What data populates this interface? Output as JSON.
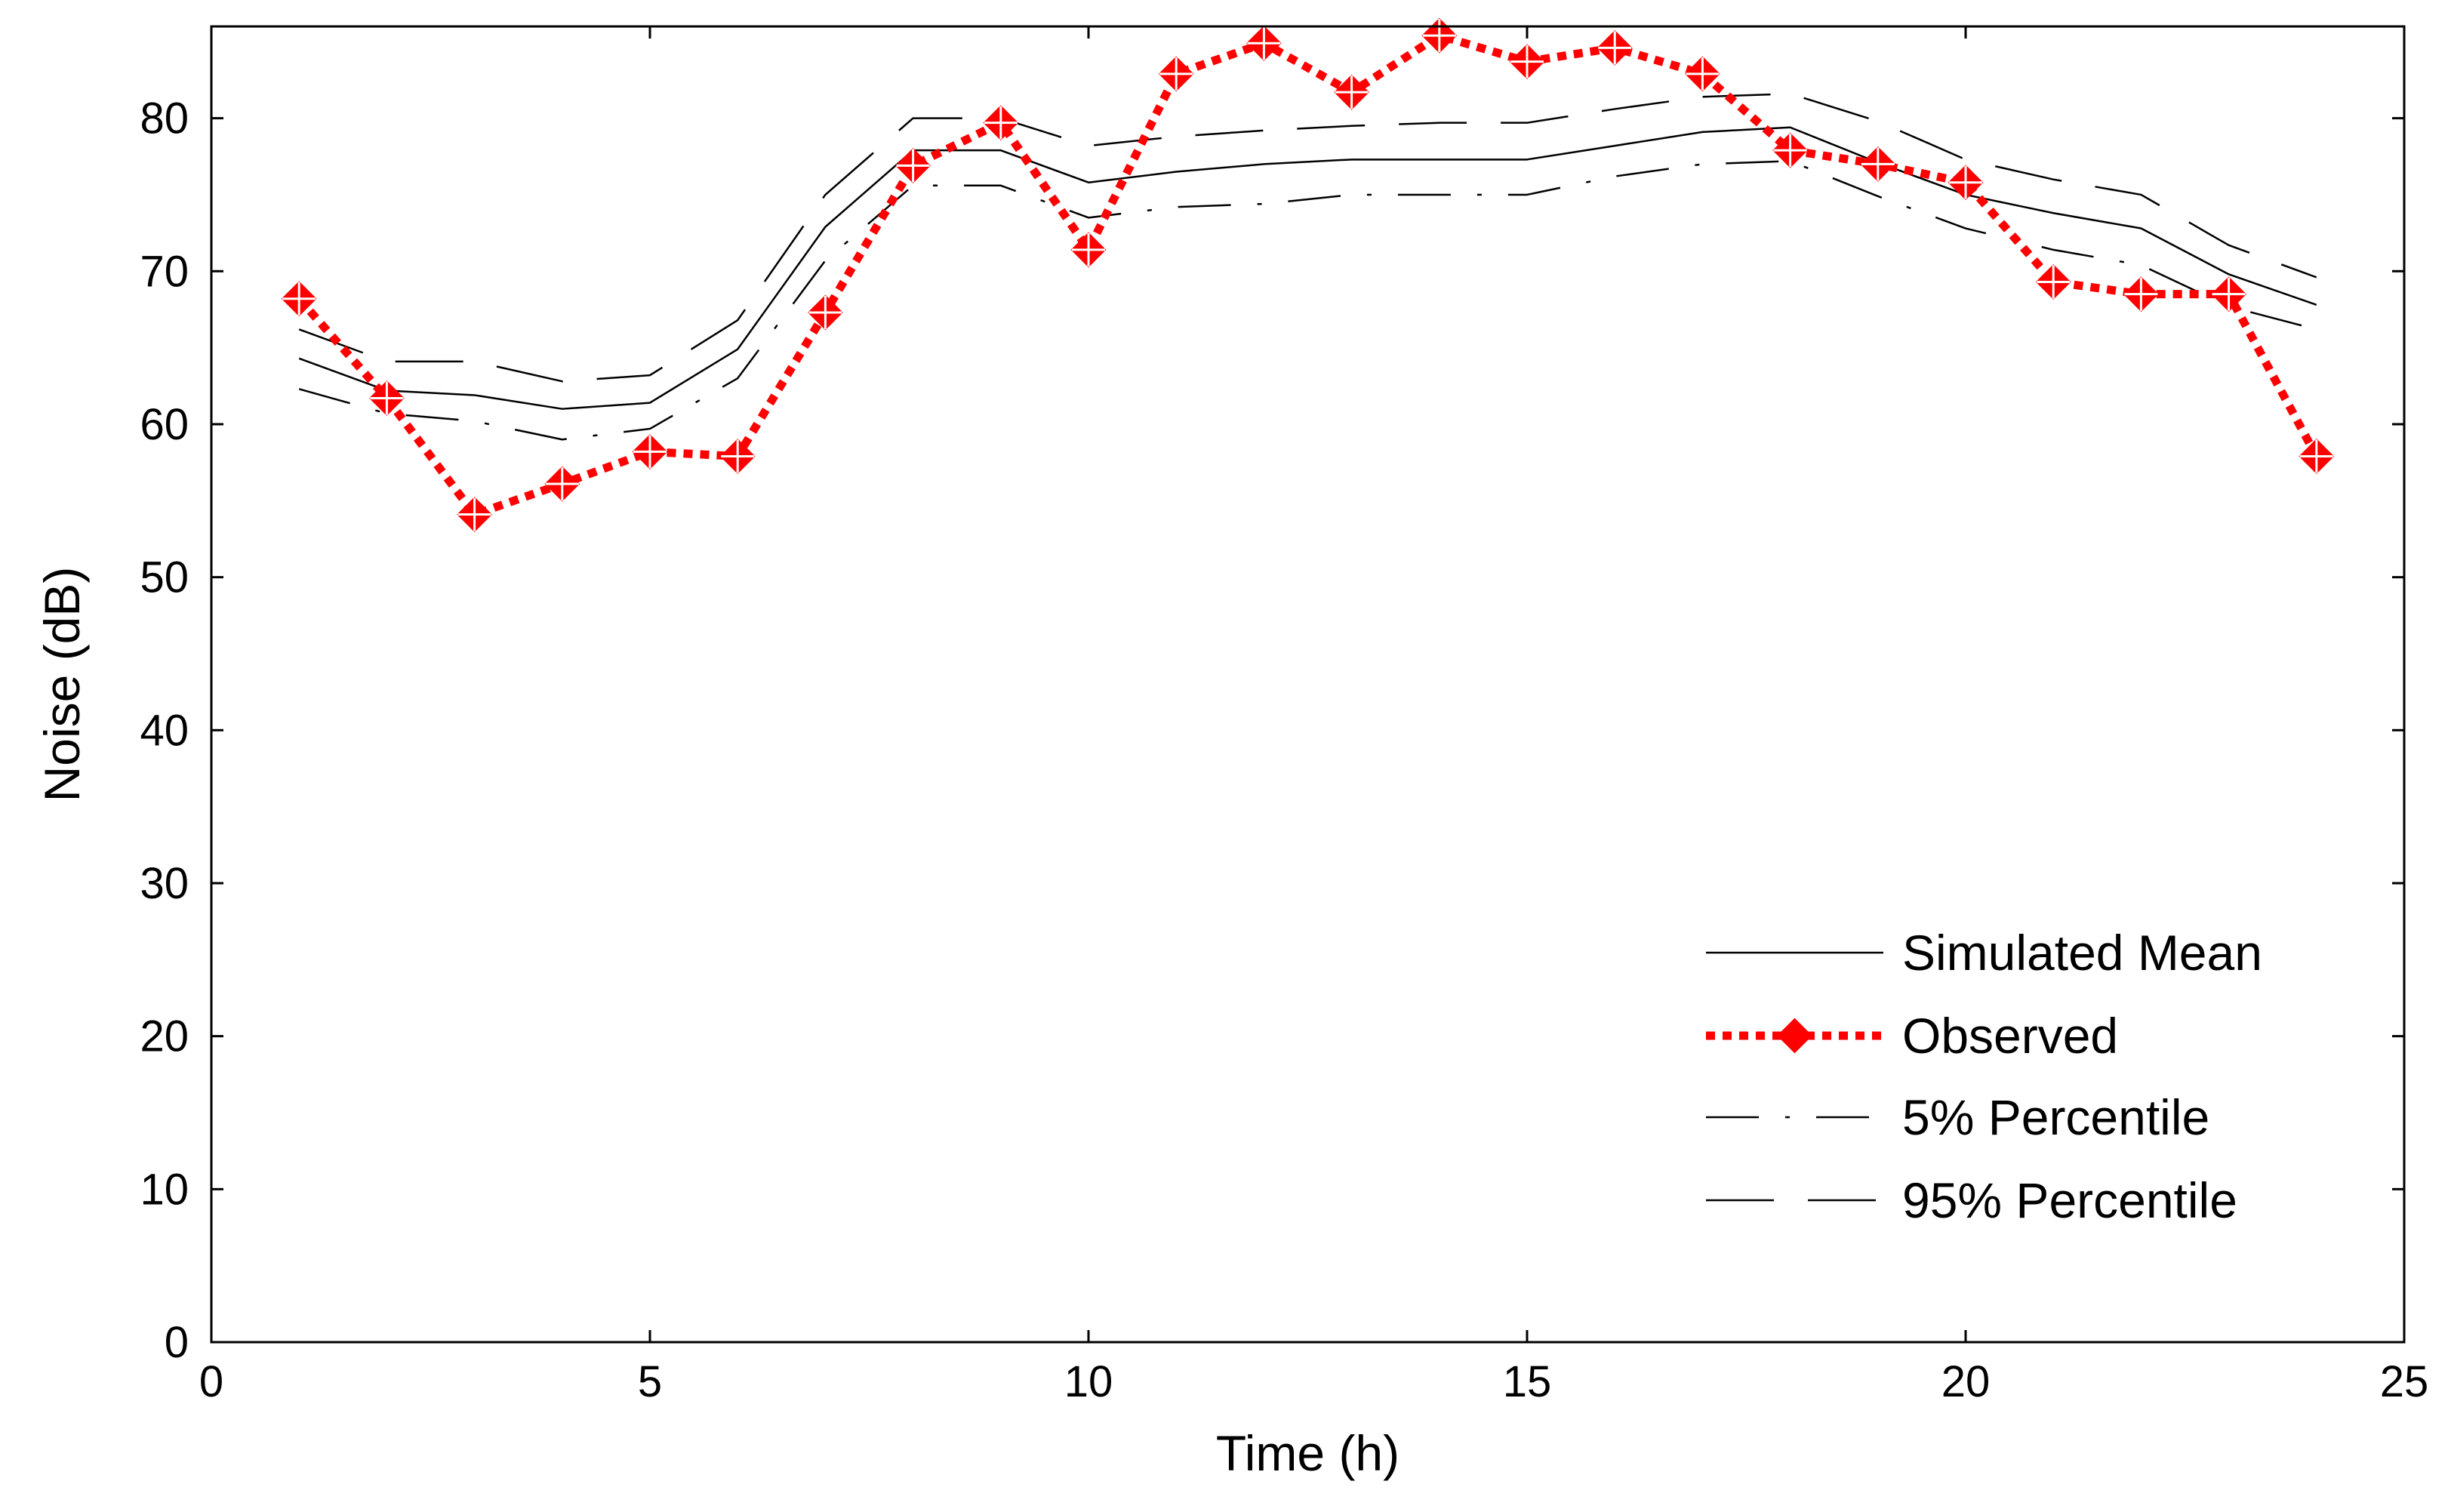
{
  "chart_data": {
    "type": "line",
    "title": "",
    "xlabel": "Time (h)",
    "ylabel": "Noise (dB)",
    "xlim": [
      0,
      25
    ],
    "ylim": [
      0,
      86
    ],
    "xticks": [
      0,
      5,
      10,
      15,
      20,
      25
    ],
    "yticks": [
      0,
      10,
      20,
      30,
      40,
      50,
      60,
      70,
      80
    ],
    "grid": false,
    "legend_position": "bottom-right",
    "x": [
      1,
      2,
      3,
      4,
      5,
      6,
      7,
      8,
      9,
      10,
      11,
      12,
      13,
      14,
      15,
      16,
      17,
      18,
      19,
      20,
      21,
      22,
      23,
      24
    ],
    "series": [
      {
        "name": "Simulated Mean",
        "style": "solid",
        "color": "#000000",
        "values": [
          64.3,
          62.2,
          61.9,
          61.0,
          61.4,
          64.9,
          72.9,
          77.9,
          77.9,
          75.8,
          76.5,
          77.0,
          77.3,
          77.3,
          77.3,
          78.2,
          79.1,
          79.4,
          77.1,
          75.0,
          73.8,
          72.8,
          69.8,
          67.8
        ]
      },
      {
        "name": "Observed",
        "style": "dotted-marker",
        "color": "#ff0000",
        "values": [
          68.2,
          61.7,
          54.1,
          56.1,
          58.2,
          57.9,
          67.3,
          76.9,
          79.7,
          71.4,
          82.9,
          84.9,
          81.7,
          85.4,
          83.7,
          84.6,
          82.9,
          77.9,
          77.0,
          75.8,
          69.3,
          68.5,
          68.5,
          57.9
        ]
      },
      {
        "name": "5% Percentile",
        "style": "dash-dot",
        "color": "#000000",
        "values": [
          62.3,
          60.7,
          60.2,
          59.0,
          59.7,
          63.0,
          70.7,
          75.6,
          75.6,
          73.5,
          74.2,
          74.4,
          75.0,
          75.0,
          75.0,
          76.2,
          77.0,
          77.2,
          74.9,
          72.8,
          71.4,
          70.4,
          67.7,
          66.2
        ]
      },
      {
        "name": "95% Percentile",
        "style": "long-dash",
        "color": "#000000",
        "values": [
          66.2,
          64.1,
          64.1,
          62.8,
          63.2,
          66.8,
          75.0,
          80.0,
          80.0,
          78.2,
          78.8,
          79.2,
          79.5,
          79.7,
          79.7,
          80.6,
          81.4,
          81.6,
          79.8,
          77.3,
          76.0,
          75.0,
          71.7,
          69.6
        ]
      }
    ]
  }
}
